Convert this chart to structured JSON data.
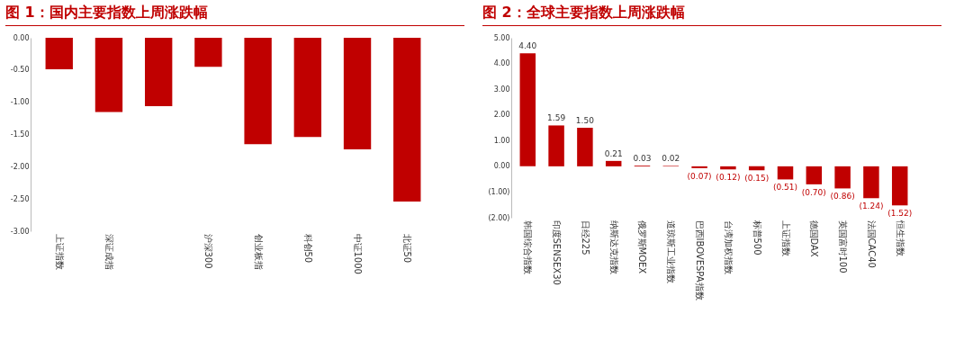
{
  "chart_data": [
    {
      "type": "bar",
      "title": "图 1：国内主要指数上周涨跌幅",
      "categories": [
        "上证指数",
        "深证成指",
        null,
        "沪深300",
        "创业板指",
        "科创50",
        "中证1000",
        "北证50"
      ],
      "values": [
        -0.49,
        -1.15,
        -1.06,
        -0.45,
        -1.65,
        -1.54,
        -1.73,
        -2.54
      ],
      "color": "#c00000",
      "ylim": [
        -3,
        0
      ],
      "yticks": [
        {
          "value": 0,
          "label": "0.00"
        },
        {
          "value": -0.5,
          "label": "-0.50"
        },
        {
          "value": -1,
          "label": "-1.00"
        },
        {
          "value": -1.5,
          "label": "-1.50"
        },
        {
          "value": -2,
          "label": "-2.00"
        },
        {
          "value": -2.5,
          "label": "-2.50"
        },
        {
          "value": -3,
          "label": "-3.00"
        }
      ]
    },
    {
      "type": "bar",
      "title": "图 2：全球主要指数上周涨跌幅",
      "categories": [
        "韩国综合指数",
        "印度SENSEX30",
        "日经225",
        "纳斯达克指数",
        "俄罗斯MOEX",
        "道琼斯工业指数",
        "巴西IBOVESPA指数",
        "台湾加权指数",
        "标普500",
        "上证指数",
        "德国DAX",
        "英国富时100",
        "法国CAC40",
        "恒生指数"
      ],
      "values": [
        4.4,
        1.59,
        1.5,
        0.21,
        0.03,
        0.02,
        -0.07,
        -0.12,
        -0.15,
        -0.51,
        -0.7,
        -0.86,
        -1.24,
        -1.52
      ],
      "value_labels": [
        "4.40",
        "1.59",
        "1.50",
        "0.21",
        "0.03",
        "0.02",
        "(0.07)",
        "(0.12)",
        "(0.15)",
        "(0.51)",
        "(0.70)",
        "(0.86)",
        "(1.24)",
        "(1.52)"
      ],
      "color": "#c00000",
      "ylim": [
        -2,
        5
      ],
      "yticks": [
        {
          "value": 5,
          "label": "5.00"
        },
        {
          "value": 4,
          "label": "4.00"
        },
        {
          "value": 3,
          "label": "3.00"
        },
        {
          "value": 2,
          "label": "2.00"
        },
        {
          "value": 1,
          "label": "1.00"
        },
        {
          "value": 0,
          "label": "0.00"
        },
        {
          "value": -1,
          "label": "(1.00)"
        },
        {
          "value": -2,
          "label": "(2.00)"
        }
      ]
    }
  ]
}
